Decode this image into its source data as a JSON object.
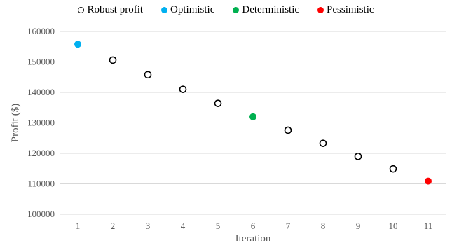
{
  "chart_data": {
    "type": "scatter",
    "title": "",
    "xlabel": "Iteration",
    "ylabel": "Profit ($)",
    "xlim": [
      0.5,
      11.5
    ],
    "ylim": [
      100000,
      160000
    ],
    "x_ticks": [
      1,
      2,
      3,
      4,
      5,
      6,
      7,
      8,
      9,
      10,
      11
    ],
    "y_ticks": [
      100000,
      110000,
      120000,
      130000,
      140000,
      150000,
      160000
    ],
    "grid": "horizontal",
    "legend_position": "top",
    "legend": [
      {
        "label": "Robust profit",
        "style": "hollow",
        "color": "#000000"
      },
      {
        "label": "Optimistic",
        "style": "filled",
        "color": "#00B0F0"
      },
      {
        "label": "Deterministic",
        "style": "filled",
        "color": "#00B050"
      },
      {
        "label": "Pessimistic",
        "style": "filled",
        "color": "#FF0000"
      }
    ],
    "series": [
      {
        "name": "Robust profit",
        "x": [
          2,
          3,
          4,
          5,
          7,
          8,
          9,
          10
        ],
        "y": [
          150600,
          145800,
          141000,
          136400,
          127600,
          123300,
          119000,
          114900
        ]
      },
      {
        "name": "Optimistic",
        "x": [
          1
        ],
        "y": [
          155800
        ]
      },
      {
        "name": "Deterministic",
        "x": [
          6
        ],
        "y": [
          132000
        ]
      },
      {
        "name": "Pessimistic",
        "x": [
          11
        ],
        "y": [
          110900
        ]
      }
    ]
  }
}
